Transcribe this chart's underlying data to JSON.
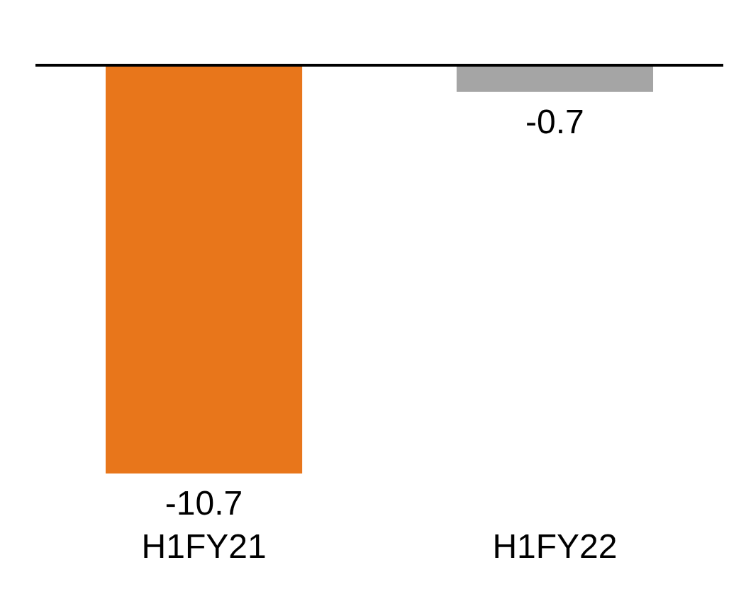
{
  "chart_data": {
    "type": "bar",
    "categories": [
      "H1FY21",
      "H1FY22"
    ],
    "values": [
      -10.7,
      -0.7
    ],
    "colors": [
      "#e8761b",
      "#a5a5a5"
    ],
    "data_labels": true
  }
}
